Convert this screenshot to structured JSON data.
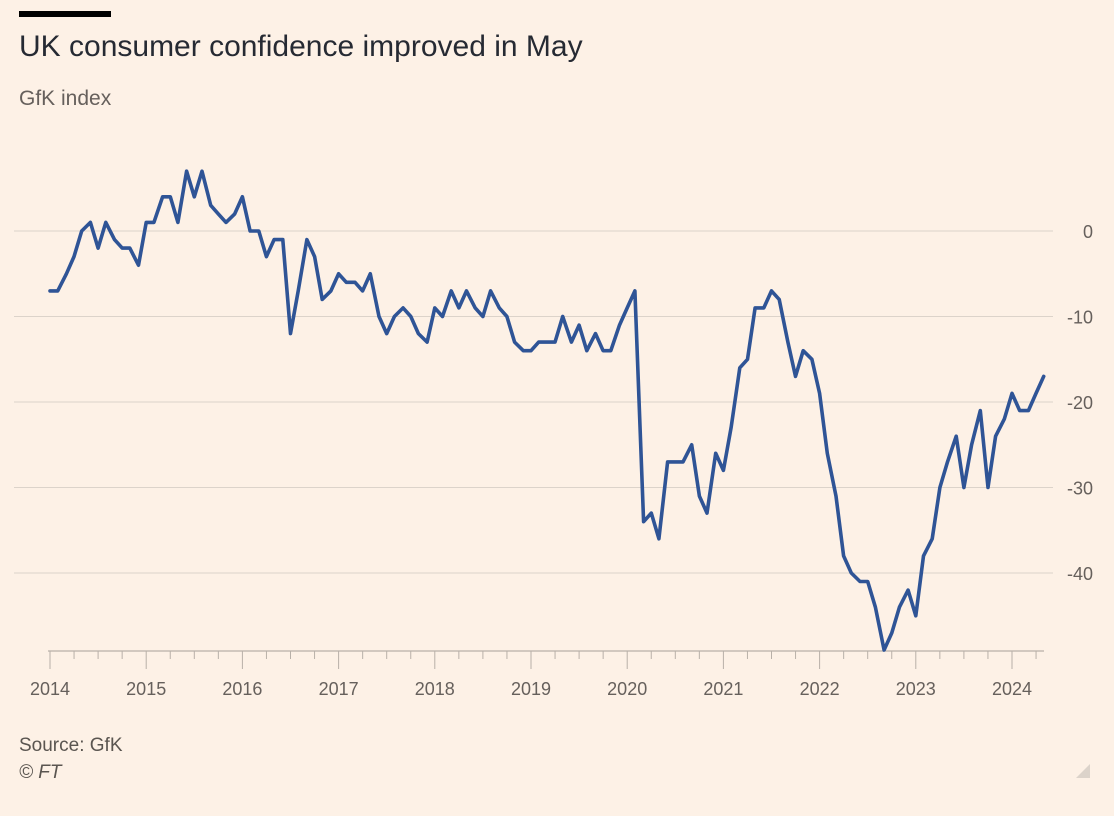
{
  "header": {
    "title": "UK consumer confidence improved in May",
    "subtitle": "GfK index"
  },
  "footer": {
    "source": "Source: GfK",
    "copyright": "© FT"
  },
  "colors": {
    "background": "#FDF1E6",
    "line": "#2F5496",
    "grid": "#DCD3CA",
    "axis": "#B8B0A8",
    "tick_label": "#66605C"
  },
  "chart_data": {
    "type": "line",
    "title": "UK consumer confidence improved in May",
    "subtitle": "GfK index",
    "xlabel": "",
    "ylabel": "",
    "ylim": [
      -49,
      7
    ],
    "xlim": [
      2014.0,
      2024.42
    ],
    "grid": true,
    "y_axis_side": "right",
    "yticks": [
      0,
      -10,
      -20,
      -30,
      -40
    ],
    "ytick_labels": [
      "0",
      "-10",
      "-20",
      "-30",
      "-40"
    ],
    "xticks": [
      2014,
      2015,
      2016,
      2017,
      2018,
      2019,
      2020,
      2021,
      2022,
      2023,
      2024
    ],
    "xtick_labels": [
      "2014",
      "2015",
      "2016",
      "2017",
      "2018",
      "2019",
      "2020",
      "2021",
      "2022",
      "2023",
      "2024"
    ],
    "series": [
      {
        "values": [
          [
            2014.0,
            -7
          ],
          [
            2014.08,
            -7
          ],
          [
            2014.17,
            -5
          ],
          [
            2014.25,
            -3
          ],
          [
            2014.33,
            0
          ],
          [
            2014.42,
            1
          ],
          [
            2014.5,
            -2
          ],
          [
            2014.58,
            1
          ],
          [
            2014.67,
            -1
          ],
          [
            2014.75,
            -2
          ],
          [
            2014.83,
            -2
          ],
          [
            2014.92,
            -4
          ],
          [
            2015.0,
            1
          ],
          [
            2015.08,
            1
          ],
          [
            2015.17,
            4
          ],
          [
            2015.25,
            4
          ],
          [
            2015.33,
            1
          ],
          [
            2015.42,
            7
          ],
          [
            2015.5,
            4
          ],
          [
            2015.58,
            7
          ],
          [
            2015.67,
            3
          ],
          [
            2015.75,
            2
          ],
          [
            2015.83,
            1
          ],
          [
            2015.92,
            2
          ],
          [
            2016.0,
            4
          ],
          [
            2016.08,
            0
          ],
          [
            2016.17,
            0
          ],
          [
            2016.25,
            -3
          ],
          [
            2016.33,
            -1
          ],
          [
            2016.42,
            -1
          ],
          [
            2016.5,
            -12
          ],
          [
            2016.58,
            -7
          ],
          [
            2016.67,
            -1
          ],
          [
            2016.75,
            -3
          ],
          [
            2016.83,
            -8
          ],
          [
            2016.92,
            -7
          ],
          [
            2017.0,
            -5
          ],
          [
            2017.08,
            -6
          ],
          [
            2017.17,
            -6
          ],
          [
            2017.25,
            -7
          ],
          [
            2017.33,
            -5
          ],
          [
            2017.42,
            -10
          ],
          [
            2017.5,
            -12
          ],
          [
            2017.58,
            -10
          ],
          [
            2017.67,
            -9
          ],
          [
            2017.75,
            -10
          ],
          [
            2017.83,
            -12
          ],
          [
            2017.92,
            -13
          ],
          [
            2018.0,
            -9
          ],
          [
            2018.08,
            -10
          ],
          [
            2018.17,
            -7
          ],
          [
            2018.25,
            -9
          ],
          [
            2018.33,
            -7
          ],
          [
            2018.42,
            -9
          ],
          [
            2018.5,
            -10
          ],
          [
            2018.58,
            -7
          ],
          [
            2018.67,
            -9
          ],
          [
            2018.75,
            -10
          ],
          [
            2018.83,
            -13
          ],
          [
            2018.92,
            -14
          ],
          [
            2019.0,
            -14
          ],
          [
            2019.08,
            -13
          ],
          [
            2019.17,
            -13
          ],
          [
            2019.25,
            -13
          ],
          [
            2019.33,
            -10
          ],
          [
            2019.42,
            -13
          ],
          [
            2019.5,
            -11
          ],
          [
            2019.58,
            -14
          ],
          [
            2019.67,
            -12
          ],
          [
            2019.75,
            -14
          ],
          [
            2019.83,
            -14
          ],
          [
            2019.92,
            -11
          ],
          [
            2020.0,
            -9
          ],
          [
            2020.08,
            -7
          ],
          [
            2020.17,
            -34
          ],
          [
            2020.25,
            -33
          ],
          [
            2020.33,
            -36
          ],
          [
            2020.42,
            -27
          ],
          [
            2020.5,
            -27
          ],
          [
            2020.58,
            -27
          ],
          [
            2020.67,
            -25
          ],
          [
            2020.75,
            -31
          ],
          [
            2020.83,
            -33
          ],
          [
            2020.92,
            -26
          ],
          [
            2021.0,
            -28
          ],
          [
            2021.08,
            -23
          ],
          [
            2021.17,
            -16
          ],
          [
            2021.25,
            -15
          ],
          [
            2021.33,
            -9
          ],
          [
            2021.42,
            -9
          ],
          [
            2021.5,
            -7
          ],
          [
            2021.58,
            -8
          ],
          [
            2021.67,
            -13
          ],
          [
            2021.75,
            -17
          ],
          [
            2021.83,
            -14
          ],
          [
            2021.92,
            -15
          ],
          [
            2022.0,
            -19
          ],
          [
            2022.08,
            -26
          ],
          [
            2022.17,
            -31
          ],
          [
            2022.25,
            -38
          ],
          [
            2022.33,
            -40
          ],
          [
            2022.42,
            -41
          ],
          [
            2022.5,
            -41
          ],
          [
            2022.58,
            -44
          ],
          [
            2022.67,
            -49
          ],
          [
            2022.75,
            -47
          ],
          [
            2022.83,
            -44
          ],
          [
            2022.92,
            -42
          ],
          [
            2023.0,
            -45
          ],
          [
            2023.08,
            -38
          ],
          [
            2023.17,
            -36
          ],
          [
            2023.25,
            -30
          ],
          [
            2023.33,
            -27
          ],
          [
            2023.42,
            -24
          ],
          [
            2023.5,
            -30
          ],
          [
            2023.58,
            -25
          ],
          [
            2023.67,
            -21
          ],
          [
            2023.75,
            -30
          ],
          [
            2023.83,
            -24
          ],
          [
            2023.92,
            -22
          ],
          [
            2024.0,
            -19
          ],
          [
            2024.08,
            -21
          ],
          [
            2024.17,
            -21
          ],
          [
            2024.25,
            -19
          ],
          [
            2024.33,
            -17
          ]
        ]
      }
    ]
  }
}
